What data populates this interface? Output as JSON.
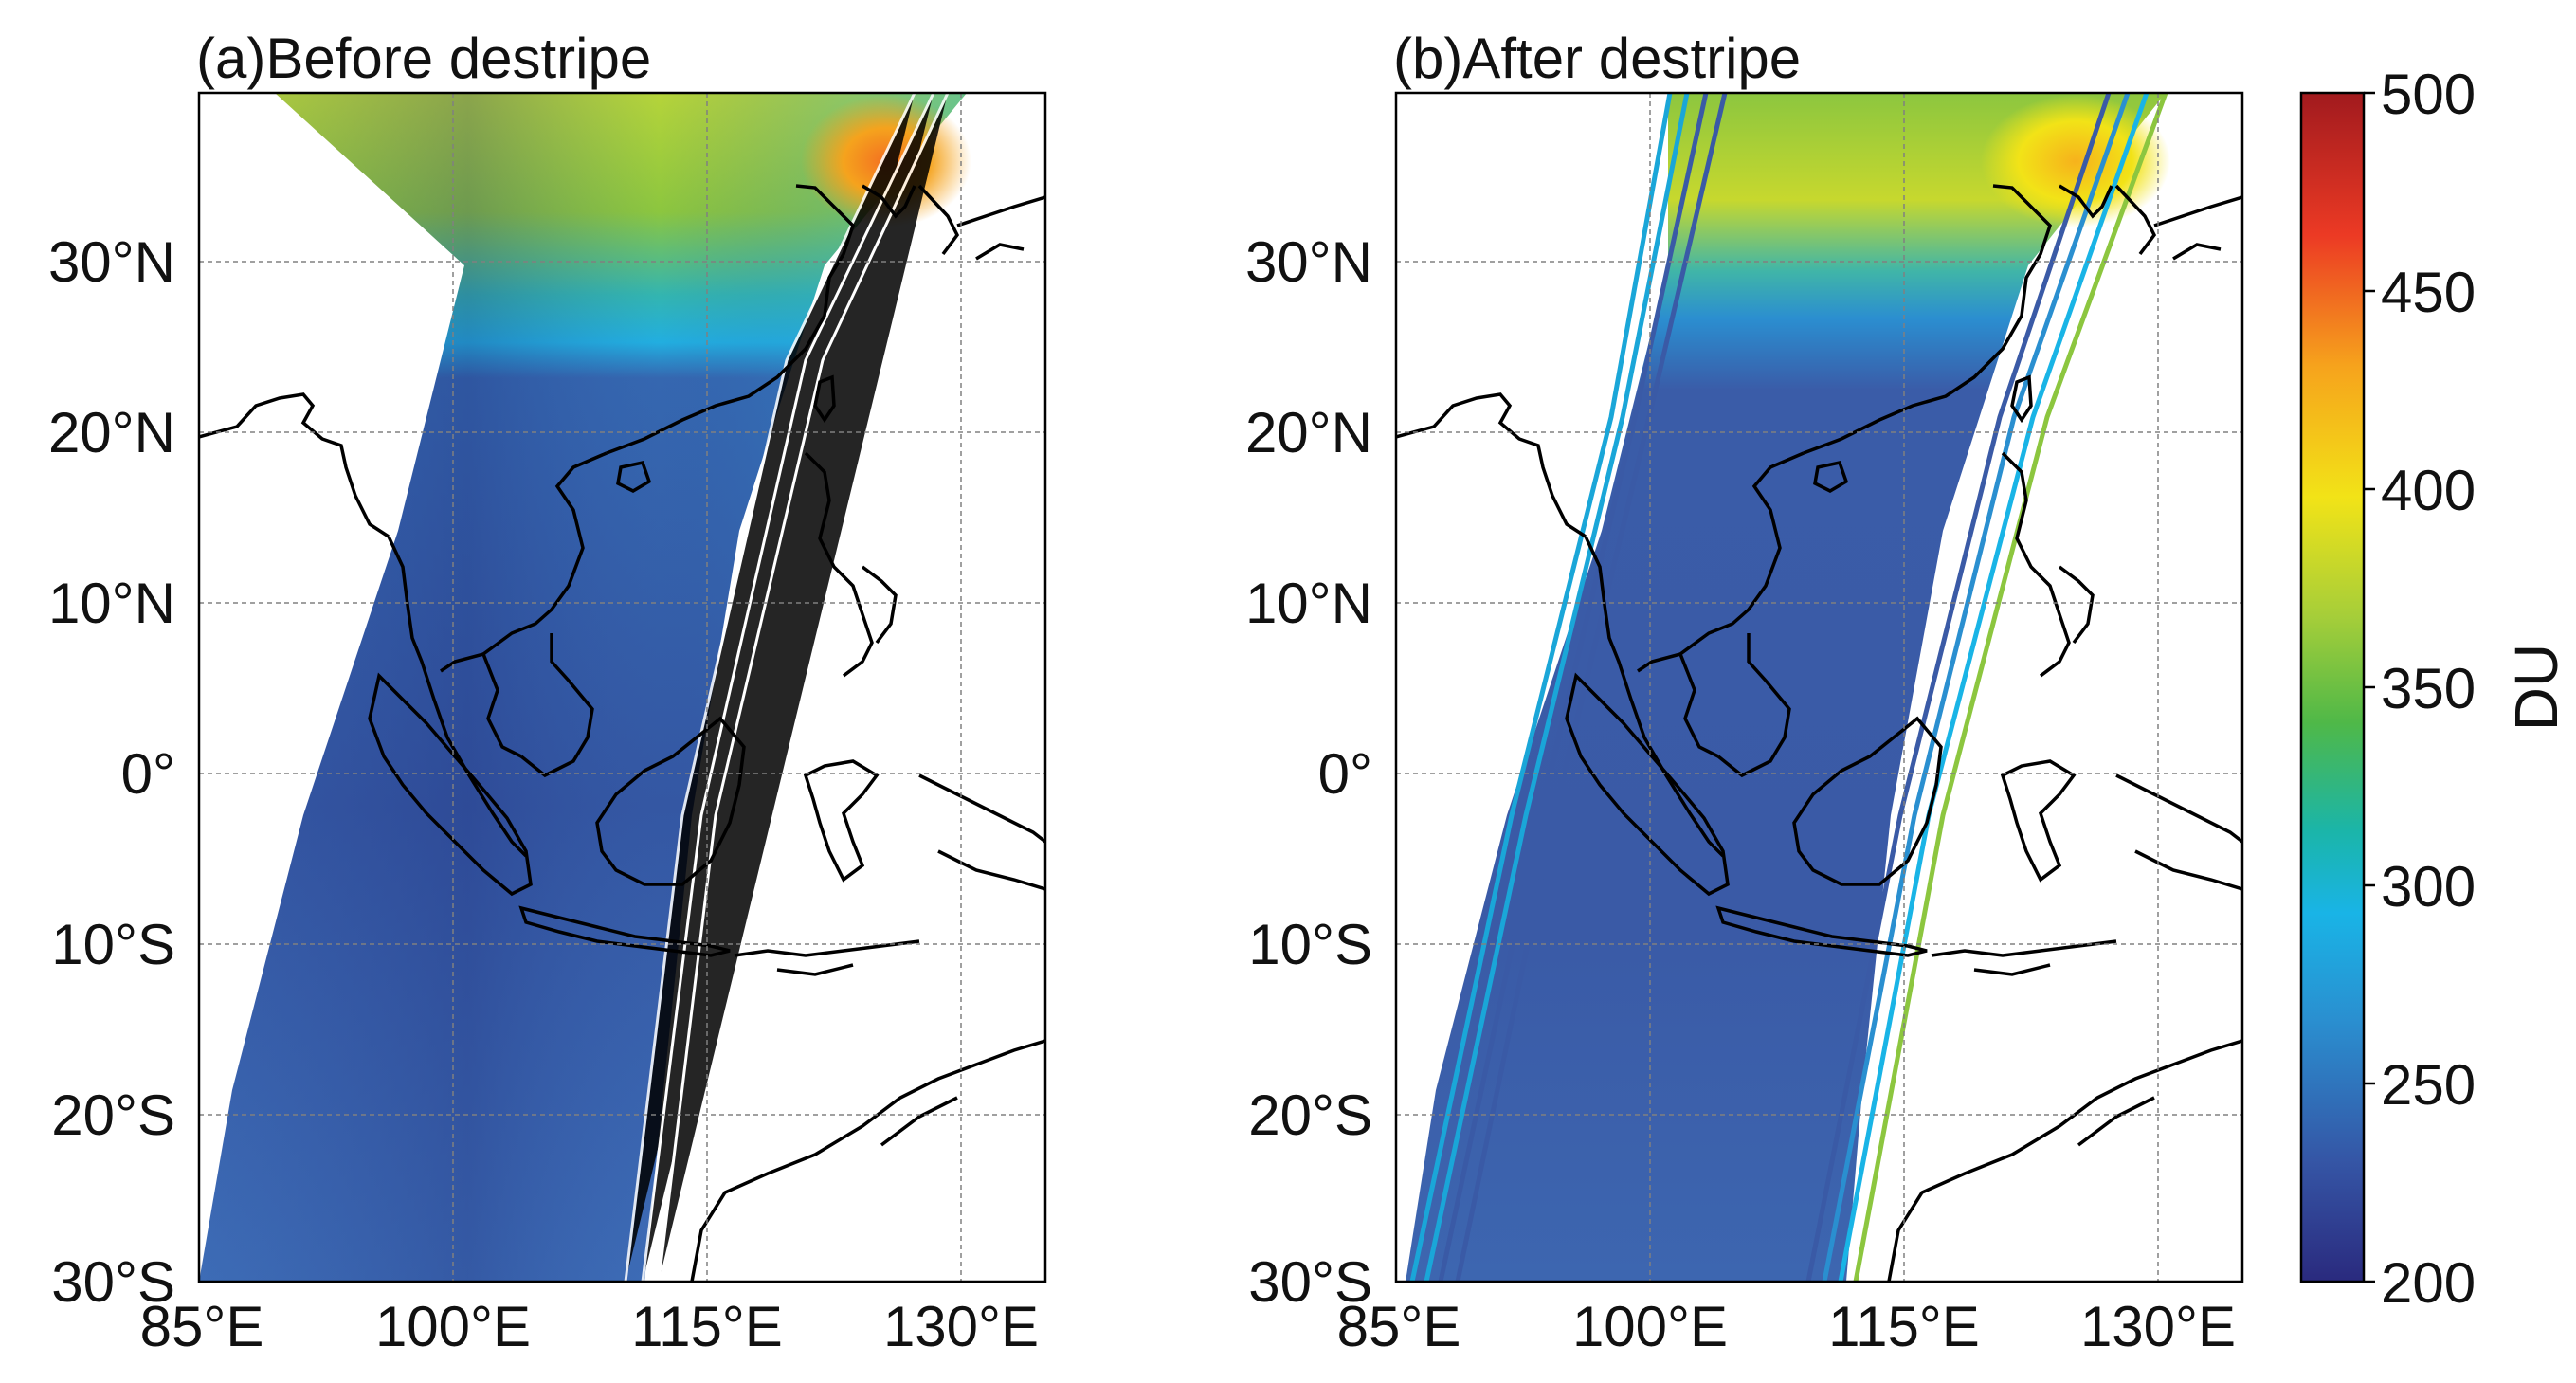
{
  "panels": [
    {
      "id": "a",
      "title": "(a)Before destripe",
      "lon_ticks": [
        "85°E",
        "100°E",
        "115°E",
        "130°E"
      ],
      "lat_ticks": [
        "30°N",
        "20°N",
        "10°N",
        "0°",
        "10°S",
        "20°S",
        "30°S"
      ]
    },
    {
      "id": "b",
      "title": "(b)After destripe",
      "lon_ticks": [
        "85°E",
        "100°E",
        "115°E",
        "130°E"
      ],
      "lat_ticks": [
        "30°N",
        "20°N",
        "10°N",
        "0°",
        "10°S",
        "20°S",
        "30°S"
      ]
    }
  ],
  "colorbar": {
    "label": "DU",
    "ticks": [
      "500",
      "450",
      "400",
      "350",
      "300",
      "250",
      "200"
    ],
    "range": [
      200,
      500
    ],
    "colormap": [
      "#2a2a7e",
      "#3555a5",
      "#2a8fd0",
      "#19b4e6",
      "#1bb5a8",
      "#4fb848",
      "#a6ce39",
      "#f2e317",
      "#f6a31c",
      "#ec3a24",
      "#a11a1e"
    ]
  },
  "map_extent": {
    "lon": [
      85,
      135
    ],
    "lat": [
      -30,
      40
    ]
  },
  "colors": {
    "frame": "#000000",
    "grid": "#808080",
    "coast": "#000000"
  }
}
